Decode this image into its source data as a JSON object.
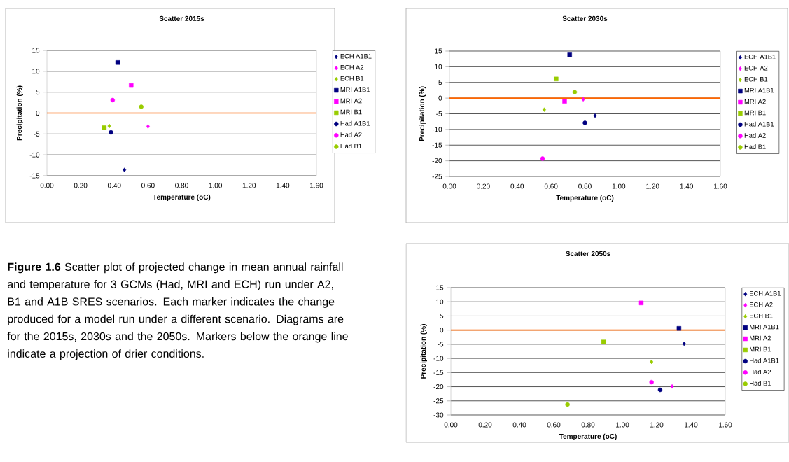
{
  "chart_data": [
    {
      "type": "scatter",
      "title": "Scatter 2015s",
      "xlabel": "Temperature (oC)",
      "ylabel": "Precipitation (%)",
      "xlim": [
        0,
        1.6
      ],
      "ylim": [
        -15,
        15
      ],
      "xticks": [
        {
          "value": 0,
          "label": "0.00"
        },
        {
          "value": 0.2,
          "label": "0.20"
        },
        {
          "value": 0.4,
          "label": "0.40"
        },
        {
          "value": 0.6,
          "label": "0.60"
        },
        {
          "value": 0.8,
          "label": "0.80"
        },
        {
          "value": 1.0,
          "label": "1.00"
        },
        {
          "value": 1.2,
          "label": "1.20"
        },
        {
          "value": 1.4,
          "label": "1.40"
        },
        {
          "value": 1.6,
          "label": "1.60"
        }
      ],
      "yticks": [
        -15,
        -10,
        -5,
        0,
        5,
        10,
        15
      ],
      "grid": "y",
      "legend": "right",
      "ref_lines": [
        {
          "axis": "y",
          "value": 0,
          "color": "#ff6600"
        }
      ],
      "annotations": [
        "**Figure 1.6** Scatter plot of projected change in mean annual rainfall and temperature for 3 GCMs (Had, MRI and ECH) run under A2, B1 and A1B SRES scenarios. Each marker indicates the change produced for a model run under a different scenario. Diagrams are for the 2015s, 2030s and the 2050s. Markers below the orange line indicate a projection of drier conditions."
      ],
      "series": [
        {
          "name": "ECH A1B1",
          "color": "#000080",
          "marker": "diamond",
          "x": [
            0.46
          ],
          "values": [
            -13.6
          ]
        },
        {
          "name": "ECH A2",
          "color": "#ff00ff",
          "marker": "diamond",
          "x": [
            0.6
          ],
          "values": [
            -3.2
          ]
        },
        {
          "name": "ECH B1",
          "color": "#99cc00",
          "marker": "diamond",
          "x": [
            0.37
          ],
          "values": [
            -3.1
          ]
        },
        {
          "name": "MRI A1B1",
          "color": "#000080",
          "marker": "square",
          "x": [
            0.42
          ],
          "values": [
            12.1
          ]
        },
        {
          "name": "MRI A2",
          "color": "#ff00ff",
          "marker": "square",
          "x": [
            0.5
          ],
          "values": [
            6.6
          ]
        },
        {
          "name": "MRI B1",
          "color": "#99cc00",
          "marker": "square",
          "x": [
            0.34
          ],
          "values": [
            -3.5
          ]
        },
        {
          "name": "Had A1B1",
          "color": "#000080",
          "marker": "circle",
          "x": [
            0.38
          ],
          "values": [
            -4.6
          ]
        },
        {
          "name": "Had A2",
          "color": "#ff00ff",
          "marker": "circle",
          "x": [
            0.39
          ],
          "values": [
            3.1
          ]
        },
        {
          "name": "Had B1",
          "color": "#99cc00",
          "marker": "circle",
          "x": [
            0.56
          ],
          "values": [
            1.5
          ]
        }
      ]
    },
    {
      "type": "scatter",
      "title": "Scatter 2030s",
      "xlabel": "Temperature (oC)",
      "ylabel": "Precipitation (%)",
      "xlim": [
        0,
        1.6
      ],
      "ylim": [
        -25,
        15
      ],
      "xticks": [
        {
          "value": 0,
          "label": "0.00"
        },
        {
          "value": 0.2,
          "label": "0.20"
        },
        {
          "value": 0.4,
          "label": "0.40"
        },
        {
          "value": 0.6,
          "label": "0.60"
        },
        {
          "value": 0.8,
          "label": "0.80"
        },
        {
          "value": 1.0,
          "label": "1.00"
        },
        {
          "value": 1.2,
          "label": "1.20"
        },
        {
          "value": 1.4,
          "label": "1.40"
        },
        {
          "value": 1.6,
          "label": "1.60"
        }
      ],
      "yticks": [
        -25,
        -20,
        -15,
        -10,
        -5,
        0,
        5,
        10,
        15
      ],
      "grid": "y",
      "legend": "right",
      "ref_lines": [
        {
          "axis": "y",
          "value": 0,
          "color": "#ff6600"
        }
      ],
      "series": [
        {
          "name": "ECH A1B1",
          "color": "#000080",
          "marker": "diamond",
          "x": [
            0.86
          ],
          "values": [
            -5.6
          ]
        },
        {
          "name": "ECH A2",
          "color": "#ff00ff",
          "marker": "diamond",
          "x": [
            0.79
          ],
          "values": [
            -0.4
          ]
        },
        {
          "name": "ECH B1",
          "color": "#99cc00",
          "marker": "diamond",
          "x": [
            0.56
          ],
          "values": [
            -3.7
          ]
        },
        {
          "name": "MRI A1B1",
          "color": "#000080",
          "marker": "square",
          "x": [
            0.71
          ],
          "values": [
            13.8
          ]
        },
        {
          "name": "MRI A2",
          "color": "#ff00ff",
          "marker": "square",
          "x": [
            0.68
          ],
          "values": [
            -1.0
          ]
        },
        {
          "name": "MRI B1",
          "color": "#99cc00",
          "marker": "square",
          "x": [
            0.63
          ],
          "values": [
            6.1
          ]
        },
        {
          "name": "Had A1B1",
          "color": "#000080",
          "marker": "circle",
          "x": [
            0.8
          ],
          "values": [
            -7.9
          ]
        },
        {
          "name": "Had A2",
          "color": "#ff00ff",
          "marker": "circle",
          "x": [
            0.55
          ],
          "values": [
            -19.3
          ]
        },
        {
          "name": "Had B1",
          "color": "#99cc00",
          "marker": "circle",
          "x": [
            0.74
          ],
          "values": [
            1.9
          ]
        }
      ]
    },
    {
      "type": "scatter",
      "title": "Scatter 2050s",
      "xlabel": "Temperature (oC)",
      "ylabel": "Precipitation (%)",
      "xlim": [
        0,
        1.6
      ],
      "ylim": [
        -30,
        15
      ],
      "xticks": [
        {
          "value": 0,
          "label": "0.00"
        },
        {
          "value": 0.2,
          "label": "0.20"
        },
        {
          "value": 0.4,
          "label": "0.40"
        },
        {
          "value": 0.6,
          "label": "0.60"
        },
        {
          "value": 0.8,
          "label": "0.80"
        },
        {
          "value": 1.0,
          "label": "1.00"
        },
        {
          "value": 1.2,
          "label": "1.20"
        },
        {
          "value": 1.4,
          "label": "1.40"
        },
        {
          "value": 1.6,
          "label": "1.60"
        }
      ],
      "yticks": [
        -30,
        -25,
        -20,
        -15,
        -10,
        -5,
        0,
        5,
        10,
        15
      ],
      "grid": "y",
      "legend": "right",
      "ref_lines": [
        {
          "axis": "y",
          "value": 0,
          "color": "#ff6600"
        }
      ],
      "series": [
        {
          "name": "ECH A1B1",
          "color": "#000080",
          "marker": "diamond",
          "x": [
            1.36
          ],
          "values": [
            -4.8
          ]
        },
        {
          "name": "ECH A2",
          "color": "#ff00ff",
          "marker": "diamond",
          "x": [
            1.29
          ],
          "values": [
            -19.9
          ]
        },
        {
          "name": "ECH B1",
          "color": "#99cc00",
          "marker": "diamond",
          "x": [
            1.17
          ],
          "values": [
            -11.2
          ]
        },
        {
          "name": "MRI A1B1",
          "color": "#000080",
          "marker": "square",
          "x": [
            1.33
          ],
          "values": [
            0.6
          ]
        },
        {
          "name": "MRI A2",
          "color": "#ff00ff",
          "marker": "square",
          "x": [
            1.11
          ],
          "values": [
            9.6
          ]
        },
        {
          "name": "MRI B1",
          "color": "#99cc00",
          "marker": "square",
          "x": [
            0.89
          ],
          "values": [
            -4.2
          ]
        },
        {
          "name": "Had A1B1",
          "color": "#000080",
          "marker": "circle",
          "x": [
            1.22
          ],
          "values": [
            -21.1
          ]
        },
        {
          "name": "Had A2",
          "color": "#ff00ff",
          "marker": "circle",
          "x": [
            1.17
          ],
          "values": [
            -18.4
          ]
        },
        {
          "name": "Had B1",
          "color": "#99cc00",
          "marker": "circle",
          "x": [
            0.68
          ],
          "values": [
            -26.3
          ]
        }
      ]
    }
  ]
}
